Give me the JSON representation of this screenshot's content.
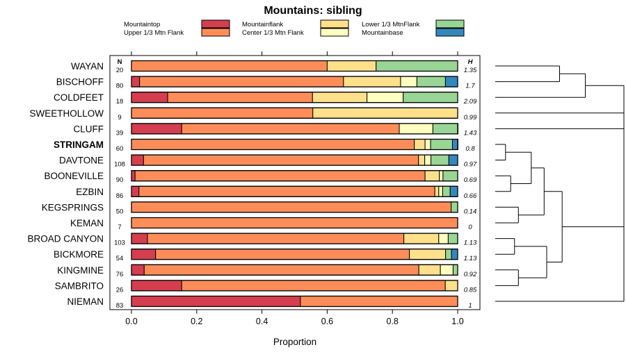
{
  "chart_data": {
    "type": "stacked-bar-horizontal",
    "title": "Mountains: sibling",
    "xlabel": "Proportion",
    "xlim": [
      0,
      1
    ],
    "x_ticks": [
      0,
      0.2,
      0.4,
      0.6,
      0.8,
      1
    ],
    "x_tick_labels": [
      "0.0",
      "0.2",
      "0.4",
      "0.6",
      "0.8",
      "1.0"
    ],
    "n_header": "N",
    "h_header": "H",
    "series": [
      {
        "name": "Mountaintop",
        "color": "#d53e4f"
      },
      {
        "name": "Upper 1/3 Mtn Flank",
        "color": "#fc8d59"
      },
      {
        "name": "Mountainflank",
        "color": "#fee08b"
      },
      {
        "name": "Center 1/3 Mtn Flank",
        "color": "#ffffbf"
      },
      {
        "name": "Lower 1/3 MtnFlank",
        "color": "#99d594"
      },
      {
        "name": "Mountainbase",
        "color": "#3288bd"
      }
    ],
    "legend_order": [
      0,
      2,
      4,
      1,
      3,
      5
    ],
    "rows": [
      {
        "label": "WAYAN",
        "n": "20",
        "h": "1.35",
        "bold": false,
        "values": [
          0,
          0.6,
          0.15,
          0,
          0.25,
          0
        ]
      },
      {
        "label": "BISCHOFF",
        "n": "80",
        "h": "1.7",
        "bold": false,
        "values": [
          0.025,
          0.625,
          0.175,
          0.05,
          0.0875,
          0.0375
        ]
      },
      {
        "label": "COLDFEET",
        "n": "18",
        "h": "2.09",
        "bold": false,
        "values": [
          0.111,
          0.444,
          0.167,
          0.111,
          0.167,
          0
        ]
      },
      {
        "label": "SWEETHOLLOW",
        "n": "9",
        "h": "0.99",
        "bold": false,
        "values": [
          0,
          0.556,
          0.444,
          0,
          0,
          0
        ]
      },
      {
        "label": "CLUFF",
        "n": "39",
        "h": "1.43",
        "bold": false,
        "values": [
          0.154,
          0.667,
          0,
          0.103,
          0.077,
          0
        ]
      },
      {
        "label": "STRINGAM",
        "n": "60",
        "h": "0.8",
        "bold": true,
        "values": [
          0,
          0.867,
          0.033,
          0.017,
          0.067,
          0.017
        ]
      },
      {
        "label": "DAVTONE",
        "n": "108",
        "h": "0.97",
        "bold": false,
        "values": [
          0.037,
          0.843,
          0.019,
          0.019,
          0.055,
          0.027
        ]
      },
      {
        "label": "BOONEVILLE",
        "n": "90",
        "h": "0.69",
        "bold": false,
        "values": [
          0.011,
          0.889,
          0.044,
          0.011,
          0.045,
          0
        ]
      },
      {
        "label": "EZBIN",
        "n": "86",
        "h": "0.66",
        "bold": false,
        "values": [
          0.023,
          0.907,
          0.012,
          0.012,
          0.023,
          0.023
        ]
      },
      {
        "label": "KEGSPRINGS",
        "n": "50",
        "h": "0.14",
        "bold": false,
        "values": [
          0,
          0.98,
          0,
          0,
          0.02,
          0
        ]
      },
      {
        "label": "KEMAN",
        "n": "7",
        "h": "0",
        "bold": false,
        "values": [
          0,
          1,
          0,
          0,
          0,
          0
        ]
      },
      {
        "label": "BROAD CANYON",
        "n": "103",
        "h": "1.13",
        "bold": false,
        "values": [
          0.049,
          0.786,
          0.107,
          0.029,
          0.029,
          0
        ]
      },
      {
        "label": "BICKMORE",
        "n": "54",
        "h": "1.13",
        "bold": false,
        "values": [
          0.074,
          0.778,
          0.111,
          0.0,
          0.018,
          0.019
        ]
      },
      {
        "label": "KINGMINE",
        "n": "76",
        "h": "0.92",
        "bold": false,
        "values": [
          0.039,
          0.842,
          0.066,
          0.039,
          0.014,
          0
        ]
      },
      {
        "label": "SAMBRITO",
        "n": "26",
        "h": "0.85",
        "bold": false,
        "values": [
          0.154,
          0.808,
          0.038,
          0,
          0,
          0
        ]
      },
      {
        "label": "NIEMAN",
        "n": "83",
        "h": "1",
        "bold": false,
        "values": [
          0.518,
          0.482,
          0,
          0,
          0,
          0
        ]
      }
    ]
  }
}
